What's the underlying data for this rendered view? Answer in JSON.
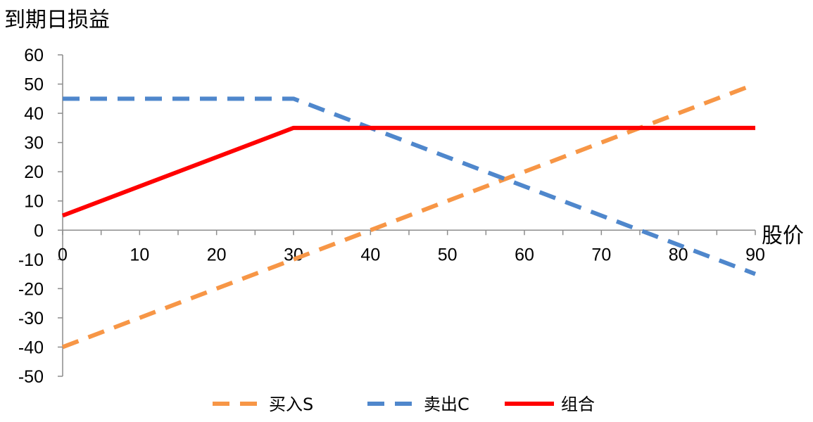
{
  "chart_data": {
    "type": "line",
    "ylabel": "到期日损益",
    "xlabel": "股价",
    "xlim": [
      0,
      90
    ],
    "ylim": [
      -50,
      60
    ],
    "x_ticks": [
      0,
      10,
      20,
      30,
      40,
      50,
      60,
      70,
      80,
      90
    ],
    "y_ticks": [
      60,
      50,
      40,
      30,
      20,
      10,
      0,
      -10,
      -20,
      -30,
      -40,
      -50
    ],
    "grid": false,
    "legend_position": "bottom",
    "series": [
      {
        "name": "买入S",
        "color": "#F79646",
        "style": "dashed",
        "points": [
          [
            0,
            -40
          ],
          [
            90,
            50
          ]
        ]
      },
      {
        "name": "卖出C",
        "color": "#4F87CC",
        "style": "dashed",
        "points": [
          [
            0,
            45
          ],
          [
            30,
            45
          ],
          [
            90,
            -15
          ]
        ]
      },
      {
        "name": "组合",
        "color": "#FF0000",
        "style": "solid",
        "points": [
          [
            0,
            5
          ],
          [
            30,
            35
          ],
          [
            90,
            35
          ]
        ]
      }
    ]
  }
}
